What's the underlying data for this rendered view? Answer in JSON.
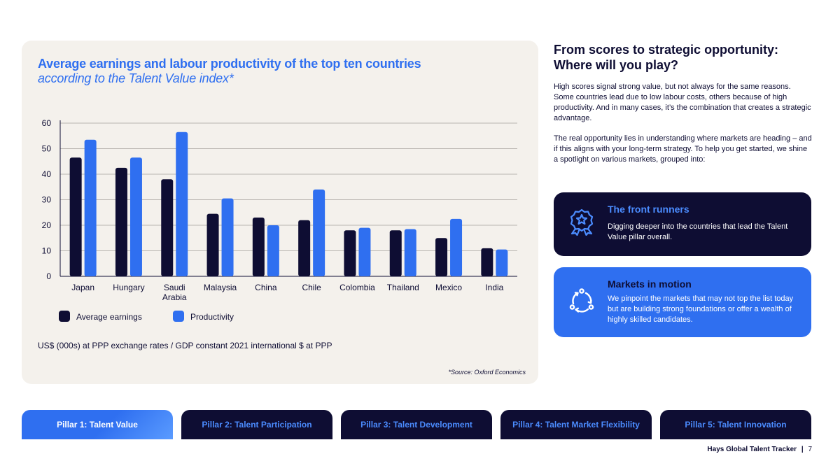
{
  "chart_data": {
    "type": "bar",
    "title": "Average earnings and labour productivity of the top ten countries",
    "subtitle": "according to the Talent Value index*",
    "categories": [
      "Japan",
      "Hungary",
      "Saudi Arabia",
      "Malaysia",
      "China",
      "Chile",
      "Colombia",
      "Thailand",
      "Mexico",
      "India"
    ],
    "category_lines": [
      [
        "Japan"
      ],
      [
        "Hungary"
      ],
      [
        "Saudi",
        "Arabia"
      ],
      [
        "Malaysia"
      ],
      [
        "China"
      ],
      [
        "Chile"
      ],
      [
        "Colombia"
      ],
      [
        "Thailand"
      ],
      [
        "Mexico"
      ],
      [
        "India"
      ]
    ],
    "series": [
      {
        "name": "Average earnings",
        "color": "#0e0d33",
        "values": [
          46.5,
          42.5,
          38,
          24.5,
          23,
          22,
          18,
          18,
          15,
          11
        ]
      },
      {
        "name": "Productivity",
        "color": "#2f6ff0",
        "values": [
          53.5,
          46.5,
          56.5,
          30.5,
          20,
          34,
          19,
          18.5,
          22.5,
          10.5
        ]
      }
    ],
    "ylim": [
      0,
      60
    ],
    "yticks": [
      0,
      10,
      20,
      30,
      40,
      50,
      60
    ],
    "grid": true,
    "legend_position": "bottom-left",
    "note": "US$ (000s) at PPP exchange rates / GDP constant 2021 international $ at PPP",
    "source": "*Source: Oxford Economics"
  },
  "side": {
    "heading_line1": "From scores to strategic opportunity:",
    "heading_line2": "Where will you play?",
    "paragraph1": "High scores signal strong value, but not always for the same reasons. Some countries lead due to low labour costs, others because of high productivity. And in many cases, it’s the combination that creates a strategic advantage.",
    "paragraph2": "The real opportunity lies in understanding where markets are heading – and if this aligns with your long-term strategy. To help you get started, we shine a spotlight on various markets, grouped into:"
  },
  "cards": [
    {
      "title": "The front runners",
      "text": "Digging deeper into the countries that lead the Talent Value pillar overall.",
      "icon": "award-ribbon-icon"
    },
    {
      "title": "Markets in motion",
      "text": "We pinpoint the markets that may not top the list today but are building strong foundations or offer a wealth of highly skilled candidates.",
      "icon": "cycle-arrows-icon"
    }
  ],
  "tabs": [
    {
      "label": "Pillar 1: Talent Value",
      "active": true
    },
    {
      "label": "Pillar 2: Talent Participation",
      "active": false
    },
    {
      "label": "Pillar 3: Talent Development",
      "active": false
    },
    {
      "label": "Pillar 4: Talent Market Flexibility",
      "active": false
    },
    {
      "label": "Pillar 5: Talent Innovation",
      "active": false
    }
  ],
  "footer": {
    "brand": "Hays Global Talent Tracker",
    "separator": "|",
    "page": "7"
  },
  "colors": {
    "navy": "#0e0d33",
    "blue": "#2f6ff0",
    "card_bg": "#f4f1ec"
  }
}
